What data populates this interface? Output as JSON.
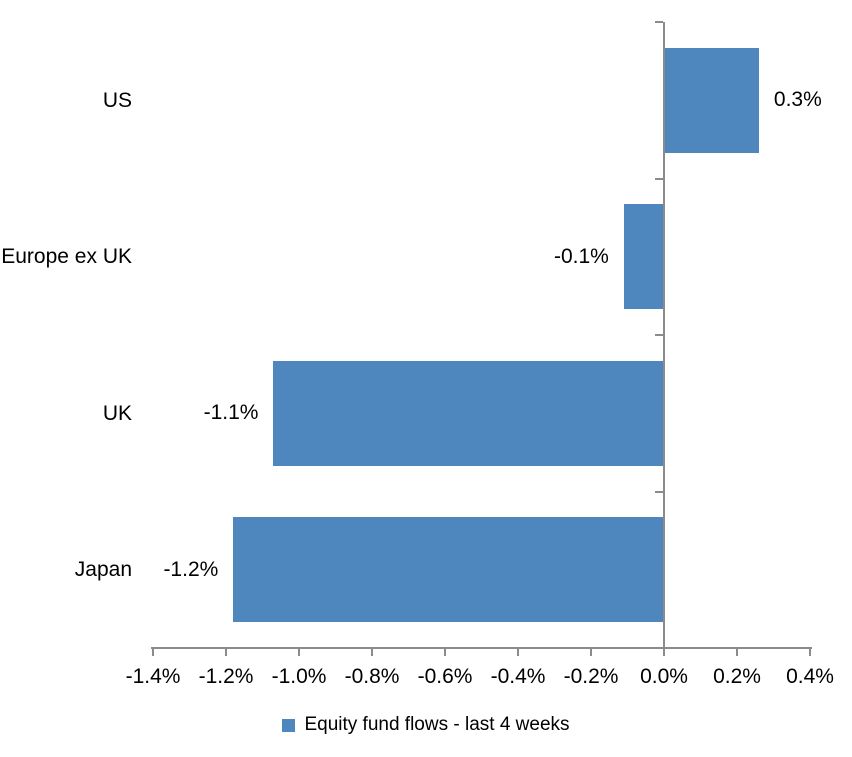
{
  "chart_data": {
    "type": "bar",
    "orientation": "horizontal",
    "title": "",
    "xlabel": "",
    "ylabel": "",
    "categories": [
      "US",
      "Europe ex UK",
      "UK",
      "Japan"
    ],
    "series": [
      {
        "name": "Equity fund flows - last 4 weeks",
        "values": [
          0.26,
          -0.11,
          -1.07,
          -1.18
        ],
        "data_labels": [
          "0.3%",
          "-0.1%",
          "-1.1%",
          "-1.2%"
        ]
      }
    ],
    "xlim": [
      -1.4,
      0.4
    ],
    "x_tick_step": 0.2,
    "x_tick_labels": [
      "-1.4%",
      "-1.2%",
      "-1.0%",
      "-0.8%",
      "-0.6%",
      "-0.4%",
      "-0.2%",
      "0.0%",
      "0.2%",
      "0.4%"
    ],
    "grid": false,
    "legend_position": "bottom",
    "bar_color": "#4D87BD",
    "axis_color": "#8B8B8B",
    "text_color": "#000000"
  },
  "legend": {
    "items": [
      {
        "label": "Equity fund flows - last 4 weeks",
        "swatch_color": "#4D87BD"
      }
    ]
  }
}
